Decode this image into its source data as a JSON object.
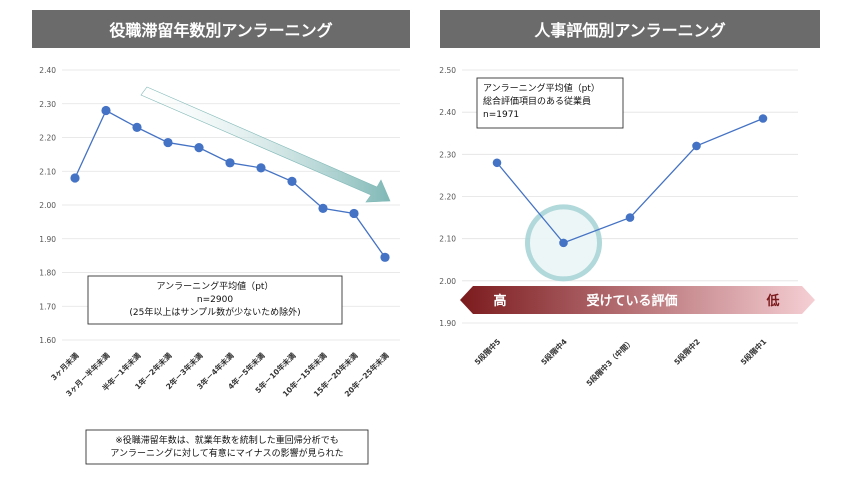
{
  "chart_data": [
    {
      "type": "line",
      "title": "役職滞留年数別アンラーニング",
      "categories": [
        "3ヶ月未満",
        "3ヶ月－半年未満",
        "半年－1年未満",
        "1年－2年未満",
        "2年－3年未満",
        "3年－4年未満",
        "4年－5年未満",
        "5年－10年未満",
        "10年－15年未満",
        "15年－20年未満",
        "20年－25年未満"
      ],
      "values": [
        2.08,
        2.28,
        2.23,
        2.185,
        2.17,
        2.125,
        2.11,
        2.07,
        1.99,
        1.975,
        1.845
      ],
      "yticks": [
        "2.40",
        "2.30",
        "2.20",
        "2.10",
        "2.00",
        "1.90",
        "1.80",
        "1.70",
        "1.60"
      ],
      "ylim": [
        1.6,
        2.4
      ],
      "legend_box": [
        "アンラーニング平均値（pt）",
        "n=2900",
        "(25年以上はサンプル数が少ないため除外)"
      ],
      "footnote": [
        "※役職滞留年数は、就業年数を統制した重回帰分析でも",
        "アンラーニングに対して有意にマイナスの影響が見られた"
      ],
      "color": "#4472c4",
      "arrow_color": "#7fb8b6",
      "grid": true
    },
    {
      "type": "line",
      "title": "人事評価別アンラーニング",
      "categories": [
        "5段階中5",
        "5段階中4",
        "5段階中3（中間）",
        "5段階中2",
        "5段階中1"
      ],
      "values": [
        2.28,
        2.09,
        2.15,
        2.32,
        2.385
      ],
      "yticks": [
        "2.50",
        "2.40",
        "2.30",
        "2.20",
        "2.10",
        "2.00",
        "1.90"
      ],
      "ylim": [
        1.9,
        2.5
      ],
      "legend_box": [
        "アンラーニング平均値（pt）",
        "総合評価項目のある従業員",
        "n=1971"
      ],
      "band": {
        "left": "高",
        "center": "受けている評価",
        "right": "低"
      },
      "band_colors": [
        "#7b1a1d",
        "#f5cfd4"
      ],
      "highlight_color": "#a9d4d6",
      "color": "#4472c4",
      "grid": true
    }
  ]
}
